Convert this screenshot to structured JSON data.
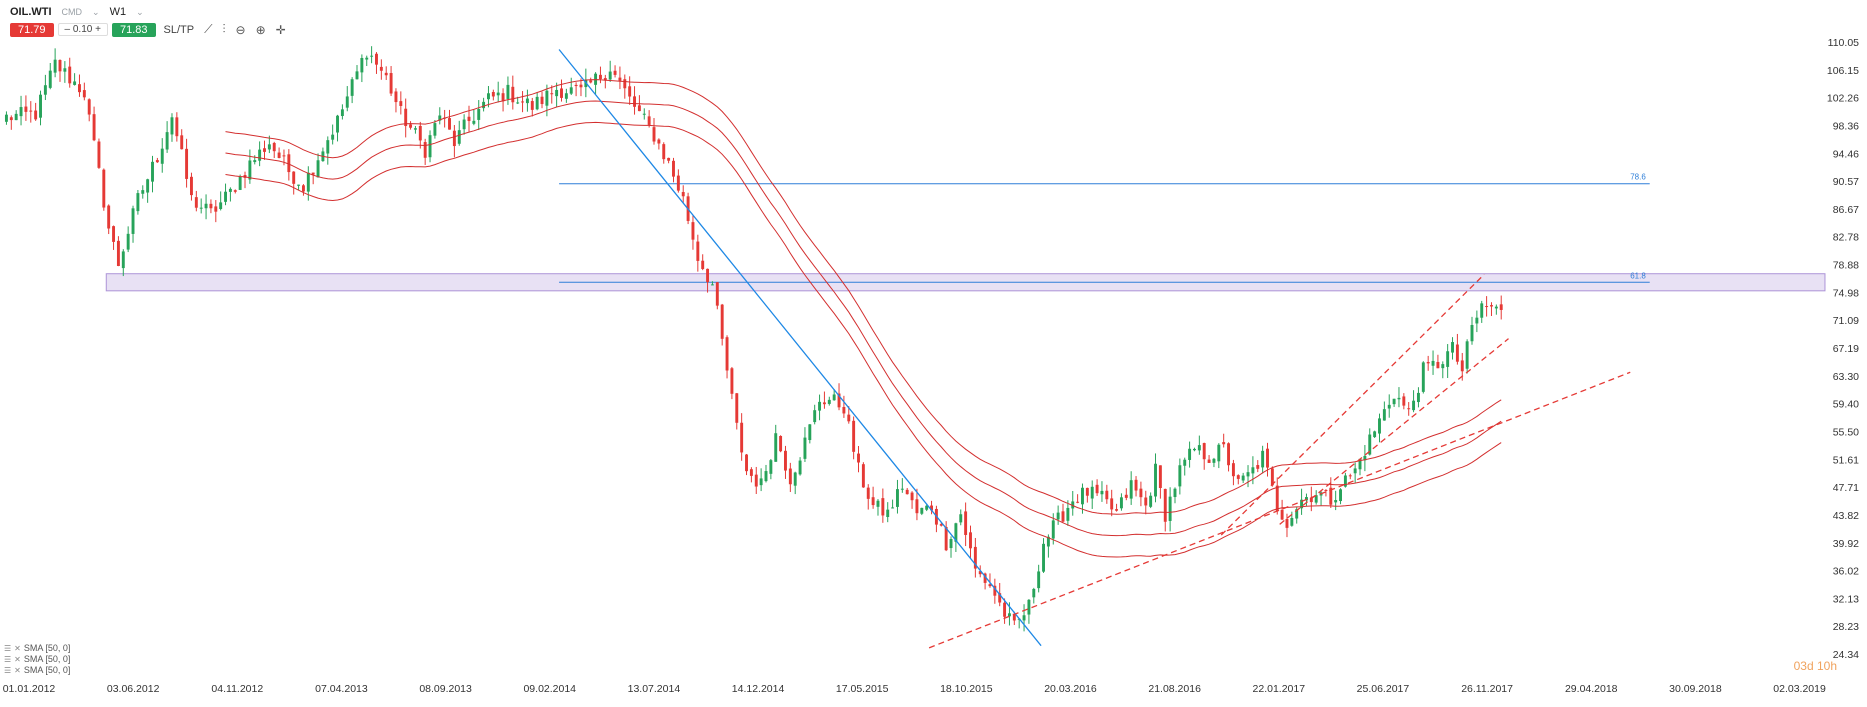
{
  "toolbar": {
    "symbol": "OIL.WTI",
    "symbol_sub": "CMD",
    "timeframe": "W1",
    "sell_price": "71.79",
    "spread": "0.10",
    "buy_price": "71.83",
    "sltp_label": "SL/TP",
    "icons": [
      "line-chart-icon",
      "indicators-icon",
      "zoom-out-icon",
      "zoom-in-icon",
      "crosshair-icon"
    ]
  },
  "indicators": [
    "SMA [50, 0]",
    "SMA [50, 0]",
    "SMA [50, 0]"
  ],
  "timer": {
    "days": "03d",
    "hours": "10h"
  },
  "colors": {
    "bull": "#27a35a",
    "bear": "#e53935",
    "sma": "#d32f2f",
    "fib": "#2f7fd8",
    "zone": "#7e57c2",
    "trend_down": "#1e88e5",
    "trend_up": "#e53935",
    "axis_text": "#333333"
  },
  "chart_data": {
    "type": "candlestick",
    "title": "",
    "ylim": [
      24.34,
      110.05
    ],
    "y_ticks": [
      "110.05",
      "106.15",
      "102.26",
      "98.36",
      "94.46",
      "90.57",
      "86.67",
      "82.78",
      "78.88",
      "74.98",
      "71.09",
      "67.19",
      "63.30",
      "59.40",
      "55.50",
      "51.61",
      "47.71",
      "43.82",
      "39.92",
      "36.02",
      "32.13",
      "28.23",
      "24.34"
    ],
    "x_ticks": [
      "01.01.2012",
      "03.06.2012",
      "04.11.2012",
      "07.04.2013",
      "08.09.2013",
      "09.02.2014",
      "13.07.2014",
      "14.12.2014",
      "17.05.2015",
      "18.10.2015",
      "20.03.2016",
      "21.08.2016",
      "22.01.2017",
      "25.06.2017",
      "26.11.2017",
      "29.04.2018",
      "30.09.2018",
      "02.03.2019"
    ],
    "candle_path": [
      [
        0,
        99.5
      ],
      [
        6,
        100
      ],
      [
        10,
        107
      ],
      [
        16,
        103
      ],
      [
        21,
        84
      ],
      [
        23,
        79
      ],
      [
        27,
        88
      ],
      [
        31,
        94
      ],
      [
        34,
        99.8
      ],
      [
        38,
        88
      ],
      [
        42,
        86
      ],
      [
        46,
        89
      ],
      [
        50,
        93
      ],
      [
        54,
        96
      ],
      [
        58,
        92
      ],
      [
        61,
        90
      ],
      [
        64,
        94
      ],
      [
        68,
        99
      ],
      [
        71,
        104
      ],
      [
        74,
        109
      ],
      [
        78,
        105
      ],
      [
        81,
        100
      ],
      [
        86,
        95
      ],
      [
        89,
        100
      ],
      [
        92,
        96
      ],
      [
        95,
        99
      ],
      [
        99,
        102
      ],
      [
        103,
        103
      ],
      [
        108,
        101
      ],
      [
        113,
        103.5
      ],
      [
        118,
        103
      ],
      [
        124,
        106.5
      ],
      [
        128,
        102
      ],
      [
        133,
        97
      ],
      [
        136,
        93
      ],
      [
        139,
        88
      ],
      [
        142,
        80
      ],
      [
        145,
        76
      ],
      [
        148,
        64
      ],
      [
        150,
        56
      ],
      [
        152,
        50
      ],
      [
        155,
        48
      ],
      [
        158,
        55
      ],
      [
        161,
        49
      ],
      [
        164,
        54
      ],
      [
        167,
        60
      ],
      [
        169,
        60
      ],
      [
        172,
        59
      ],
      [
        175,
        50
      ],
      [
        178,
        45
      ],
      [
        181,
        44
      ],
      [
        184,
        48
      ],
      [
        187,
        44
      ],
      [
        190,
        45
      ],
      [
        193,
        40
      ],
      [
        196,
        44
      ],
      [
        199,
        36
      ],
      [
        202,
        34
      ],
      [
        205,
        30
      ],
      [
        207,
        28
      ],
      [
        210,
        31
      ],
      [
        213,
        40
      ],
      [
        216,
        43
      ],
      [
        219,
        46
      ],
      [
        222,
        47
      ],
      [
        225,
        46
      ],
      [
        228,
        44
      ],
      [
        231,
        48
      ],
      [
        234,
        45
      ],
      [
        236,
        50
      ],
      [
        238,
        44
      ],
      [
        241,
        50
      ],
      [
        244,
        53
      ],
      [
        247,
        52
      ],
      [
        250,
        53
      ],
      [
        253,
        48
      ],
      [
        256,
        50
      ],
      [
        258,
        52
      ],
      [
        261,
        45
      ],
      [
        263,
        43
      ],
      [
        266,
        46
      ],
      [
        269,
        47
      ],
      [
        272,
        46
      ],
      [
        274,
        48
      ],
      [
        277,
        50
      ],
      [
        279,
        53
      ],
      [
        282,
        57
      ],
      [
        285,
        61
      ],
      [
        288,
        58
      ],
      [
        291,
        64
      ],
      [
        294,
        65
      ],
      [
        297,
        67
      ],
      [
        299,
        64
      ],
      [
        301,
        70
      ],
      [
        303,
        73
      ],
      [
        305,
        73
      ],
      [
        307,
        72
      ]
    ],
    "sma_offsets": [
      -3,
      0,
      3
    ],
    "fib_levels": [
      {
        "label": "78.6",
        "value": 90.2
      },
      {
        "label": "61.8",
        "value": 76.4
      }
    ],
    "resistance_zone": [
      75.2,
      77.6
    ],
    "trendlines": [
      {
        "style": "solid",
        "color": "trend_down",
        "from": [
          114,
          109
        ],
        "to": [
          213,
          25.5
        ]
      },
      {
        "style": "dashed",
        "color": "trend_up",
        "from": [
          190,
          25.2
        ],
        "to": [
          334,
          63.8
        ]
      },
      {
        "style": "dashed",
        "color": "trend_up",
        "from": [
          250,
          41
        ],
        "to": [
          304,
          77.5
        ]
      },
      {
        "style": "dashed",
        "color": "trend_up",
        "from": [
          262,
          42.5
        ],
        "to": [
          309,
          68.5
        ]
      }
    ],
    "last_week_index": 307,
    "weeks_visible": 374
  }
}
